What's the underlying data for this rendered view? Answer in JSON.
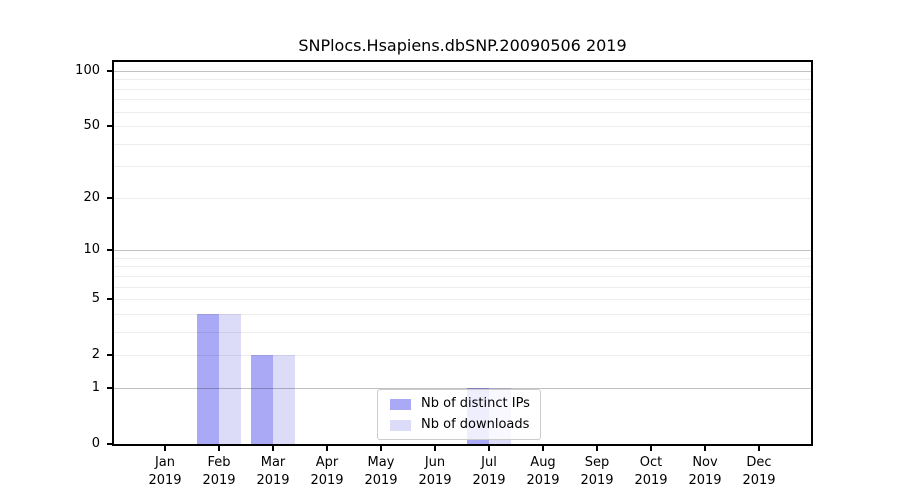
{
  "chart_data": {
    "type": "bar",
    "title": "SNPlocs.Hsapiens.dbSNP.20090506 2019",
    "x_tick_months": [
      "Jan",
      "Feb",
      "Mar",
      "Apr",
      "May",
      "Jun",
      "Jul",
      "Aug",
      "Sep",
      "Oct",
      "Nov",
      "Dec"
    ],
    "x_tick_year": "2019",
    "y_scale": "log1p",
    "ylim": [
      0,
      113
    ],
    "y_tick_values": [
      0,
      1,
      2,
      5,
      10,
      20,
      50,
      100
    ],
    "y_major_gridlines": [
      1,
      10,
      100
    ],
    "y_minor_gridlines": [
      2,
      3,
      4,
      5,
      6,
      7,
      8,
      9,
      20,
      30,
      40,
      50,
      60,
      70,
      80,
      90
    ],
    "grid": "horizontal",
    "legend_position": "lower center",
    "series": [
      {
        "name": "Nb of distinct IPs",
        "color": "#a9a9f6",
        "values": [
          0,
          4,
          2,
          0,
          0,
          0,
          1,
          0,
          0,
          0,
          0,
          0
        ]
      },
      {
        "name": "Nb of downloads",
        "color": "#dcdcf9",
        "values": [
          0,
          4,
          2,
          0,
          0,
          0,
          1,
          0,
          0,
          0,
          0,
          0
        ]
      }
    ],
    "colors": {
      "spine": "#000000",
      "major_grid": "#c2c2c2",
      "minor_grid": "#ededed",
      "background": "#ffffff"
    }
  }
}
